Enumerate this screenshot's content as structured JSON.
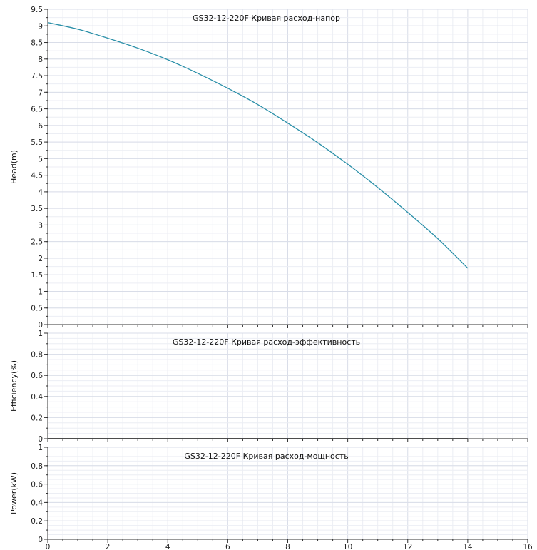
{
  "chart_data": [
    {
      "type": "line",
      "title": "GS32-12-220F Кривая расход-напор",
      "xlabel": "",
      "ylabel": "Head(m)",
      "xlim": [
        0,
        16
      ],
      "ylim": [
        0,
        9.5
      ],
      "x_ticks": [
        "0",
        "2",
        "4",
        "6",
        "8",
        "10",
        "12",
        "14",
        "16"
      ],
      "y_ticks": [
        "0",
        "0.5",
        "1",
        "1.5",
        "2",
        "2.5",
        "3",
        "3.5",
        "4",
        "4.5",
        "5",
        "5.5",
        "6",
        "6.5",
        "7",
        "7.5",
        "8",
        "8.5",
        "9",
        "9.5"
      ],
      "grid": true,
      "series": [
        {
          "color": "#2a8fa8",
          "x": [
            0,
            1,
            2,
            3,
            4,
            5,
            6,
            7,
            8,
            9,
            10,
            11,
            12,
            13,
            14
          ],
          "y": [
            9.1,
            8.9,
            8.63,
            8.33,
            7.98,
            7.57,
            7.12,
            6.63,
            6.07,
            5.48,
            4.83,
            4.13,
            3.38,
            2.59,
            1.7
          ]
        }
      ]
    },
    {
      "type": "line",
      "title": "GS32-12-220F Кривая расход-эффективность",
      "xlabel": "",
      "ylabel": "Efficiency(%)",
      "xlim": [
        0,
        16
      ],
      "ylim": [
        0,
        1
      ],
      "x_ticks": [],
      "y_ticks": [
        "0",
        "0.2",
        "0.4",
        "0.6",
        "0.8",
        "1"
      ],
      "grid": true,
      "series": [
        {
          "color": "#111111",
          "x": [
            0,
            14
          ],
          "y": [
            0,
            0
          ]
        }
      ]
    },
    {
      "type": "line",
      "title": "GS32-12-220F Кривая расход-мощность",
      "xlabel": "",
      "ylabel": "Power(kW)",
      "xlim": [
        0,
        16
      ],
      "ylim": [
        0,
        1
      ],
      "x_ticks": [
        "0",
        "2",
        "4",
        "6",
        "8",
        "10",
        "12",
        "14",
        "16"
      ],
      "y_ticks": [
        "0",
        "0.2",
        "0.4",
        "0.6",
        "0.8",
        "1"
      ],
      "grid": true,
      "series": []
    }
  ]
}
